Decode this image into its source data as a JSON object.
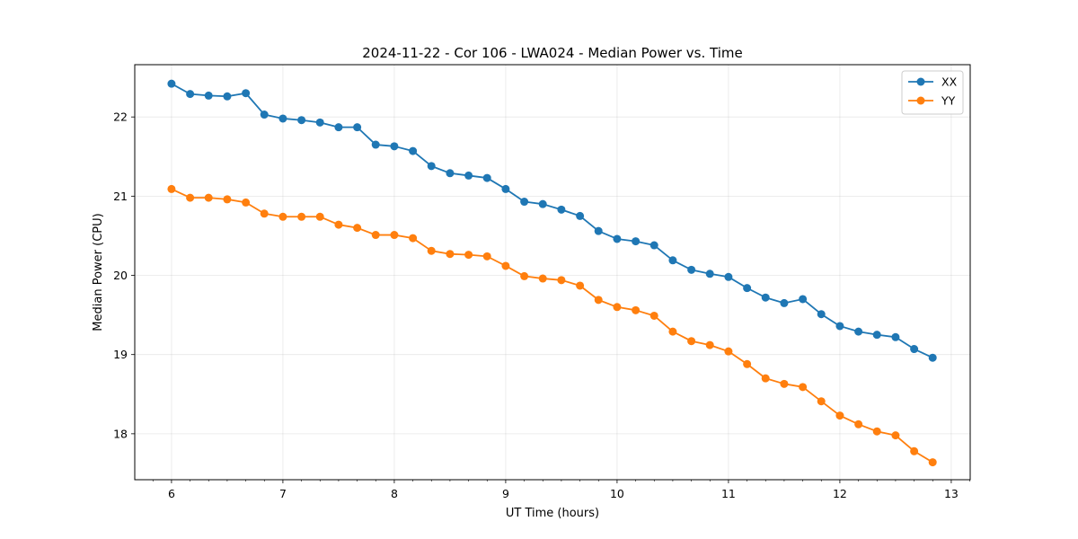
{
  "chart_data": {
    "type": "line",
    "title": "2024-11-22 - Cor 106 - LWA024 - Median Power vs. Time",
    "xlabel": "UT Time (hours)",
    "ylabel": "Median Power (CPU)",
    "xlim": [
      5.67,
      13.17
    ],
    "ylim": [
      17.42,
      22.66
    ],
    "x_ticks": [
      6,
      7,
      8,
      9,
      10,
      11,
      12,
      13
    ],
    "y_ticks": [
      18,
      19,
      20,
      21,
      22
    ],
    "grid": true,
    "legend_position": "top-right",
    "x": [
      6.0,
      6.167,
      6.333,
      6.5,
      6.667,
      6.833,
      7.0,
      7.167,
      7.333,
      7.5,
      7.667,
      7.833,
      8.0,
      8.167,
      8.333,
      8.5,
      8.667,
      8.833,
      9.0,
      9.167,
      9.333,
      9.5,
      9.667,
      9.833,
      10.0,
      10.167,
      10.333,
      10.5,
      10.667,
      10.833,
      11.0,
      11.167,
      11.333,
      11.5,
      11.667,
      11.833,
      12.0,
      12.167,
      12.333,
      12.5,
      12.667,
      12.833
    ],
    "series": [
      {
        "name": "XX",
        "color": "#1f77b4",
        "values": [
          22.42,
          22.29,
          22.27,
          22.26,
          22.3,
          22.03,
          21.98,
          21.96,
          21.93,
          21.87,
          21.87,
          21.65,
          21.63,
          21.57,
          21.38,
          21.29,
          21.26,
          21.23,
          21.09,
          20.93,
          20.9,
          20.83,
          20.75,
          20.56,
          20.46,
          20.43,
          20.38,
          20.19,
          20.07,
          20.02,
          19.98,
          19.84,
          19.72,
          19.65,
          19.7,
          19.51,
          19.36,
          19.29,
          19.25,
          19.22,
          19.07,
          18.96
        ]
      },
      {
        "name": "YY",
        "color": "#ff7f0e",
        "values": [
          21.09,
          20.98,
          20.98,
          20.96,
          20.92,
          20.78,
          20.74,
          20.74,
          20.74,
          20.64,
          20.6,
          20.51,
          20.51,
          20.47,
          20.31,
          20.27,
          20.26,
          20.24,
          20.12,
          19.99,
          19.96,
          19.94,
          19.87,
          19.69,
          19.6,
          19.56,
          19.49,
          19.29,
          19.17,
          19.12,
          19.04,
          18.88,
          18.7,
          18.63,
          18.59,
          18.41,
          18.23,
          18.12,
          18.03,
          17.98,
          17.78,
          17.64
        ]
      }
    ]
  }
}
